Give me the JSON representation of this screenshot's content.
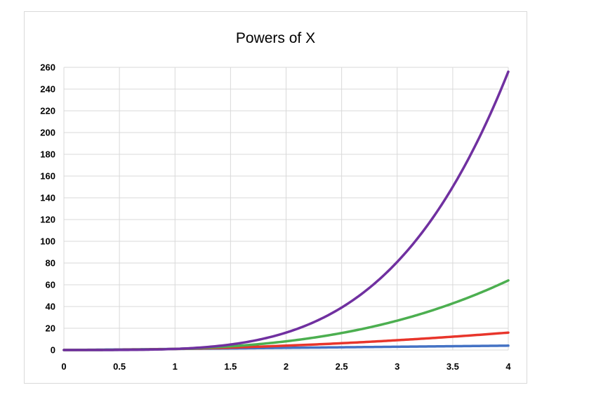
{
  "chart_data": {
    "type": "line",
    "title": "Powers of X",
    "xlabel": "",
    "ylabel": "",
    "xlim": [
      0,
      4
    ],
    "ylim": [
      0,
      260
    ],
    "xticks": [
      0,
      0.5,
      1,
      1.5,
      2,
      2.5,
      3,
      3.5,
      4
    ],
    "xtick_labels": [
      "0",
      "0.5",
      "1",
      "1.5",
      "2",
      "2.5",
      "3",
      "3.5",
      "4"
    ],
    "yticks": [
      0,
      20,
      40,
      60,
      80,
      100,
      120,
      140,
      160,
      180,
      200,
      220,
      240,
      260
    ],
    "ytick_labels": [
      "0",
      "20",
      "40",
      "60",
      "80",
      "100",
      "120",
      "140",
      "160",
      "180",
      "200",
      "220",
      "240",
      "260"
    ],
    "grid": true,
    "legend": "none",
    "x": [
      0,
      0.5,
      1,
      1.5,
      2,
      2.5,
      3,
      3.5,
      4
    ],
    "series": [
      {
        "color": "#4472c4",
        "values": [
          0,
          0.5,
          1,
          1.5,
          2,
          2.5,
          3,
          3.5,
          4
        ]
      },
      {
        "color": "#e8352b",
        "values": [
          0,
          0.25,
          1,
          2.25,
          4,
          6.25,
          9,
          12.25,
          16
        ]
      },
      {
        "color": "#4caf50",
        "values": [
          0,
          0.125,
          1,
          3.375,
          8,
          15.625,
          27,
          42.875,
          64
        ]
      },
      {
        "color": "#7030a0",
        "values": [
          0,
          0.0625,
          1,
          5.0625,
          16,
          39.0625,
          81,
          150.0625,
          256
        ]
      }
    ]
  }
}
